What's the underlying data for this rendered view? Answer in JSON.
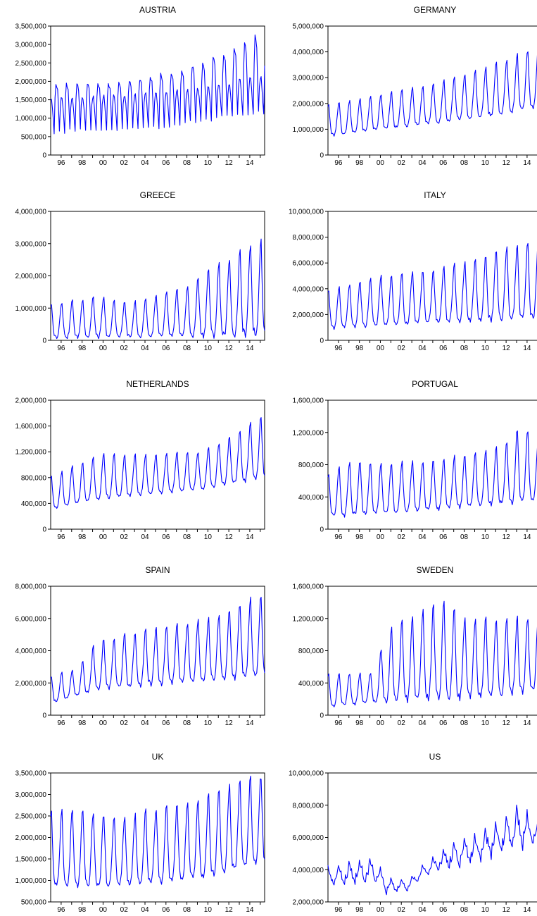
{
  "figure": {
    "x_axis_type": "monthly date axis, 1996 to 2015",
    "x_tick_labels": [
      "96",
      "98",
      "00",
      "02",
      "04",
      "06",
      "08",
      "10",
      "12",
      "14"
    ],
    "line_color": "#0000ff",
    "axis_color": "#000000",
    "grid": false,
    "legend": "none"
  },
  "chart_data": [
    {
      "type": "line",
      "title": "AUSTRIA",
      "xlabel": "",
      "ylabel": "",
      "xlim": [
        "1995-07",
        "2015-12"
      ],
      "ylim": [
        0,
        3500000
      ],
      "yticks": [
        0,
        500000,
        1000000,
        1500000,
        2000000,
        2500000,
        3000000,
        3500000
      ],
      "ytick_labels": [
        "0",
        "500,000",
        "1,000,000",
        "1,500,000",
        "2,000,000",
        "2,500,000",
        "3,000,000",
        "3,500,000"
      ],
      "x_tick_labels": [
        "96",
        "98",
        "00",
        "02",
        "04",
        "06",
        "08",
        "10",
        "12",
        "14"
      ],
      "pattern": "ski",
      "start_date": "1995-01",
      "base_level": [
        [
          1995,
          1100000
        ],
        [
          2000,
          1150000
        ],
        [
          2005,
          1250000
        ],
        [
          2010,
          1400000
        ],
        [
          2015,
          1600000
        ]
      ],
      "winter_peak": [
        [
          1995,
          1900000
        ],
        [
          2002,
          1950000
        ],
        [
          2008,
          2300000
        ],
        [
          2012,
          2750000
        ],
        [
          2015,
          3200000
        ]
      ],
      "summer_peak": [
        [
          1995,
          1500000
        ],
        [
          2005,
          1650000
        ],
        [
          2010,
          1800000
        ],
        [
          2015,
          2100000
        ]
      ],
      "trough": [
        [
          1995,
          500000
        ],
        [
          2005,
          600000
        ],
        [
          2010,
          800000
        ],
        [
          2015,
          950000
        ]
      ]
    },
    {
      "type": "line",
      "title": "GERMANY",
      "xlabel": "",
      "ylabel": "",
      "xlim": [
        "1995-07",
        "2015-12"
      ],
      "ylim": [
        0,
        5000000
      ],
      "yticks": [
        0,
        1000000,
        2000000,
        3000000,
        4000000,
        5000000
      ],
      "ytick_labels": [
        "0",
        "1,000,000",
        "2,000,000",
        "3,000,000",
        "4,000,000",
        "5,000,000"
      ],
      "x_tick_labels": [
        "96",
        "98",
        "00",
        "02",
        "04",
        "06",
        "08",
        "10",
        "12",
        "14"
      ],
      "pattern": "summer",
      "start_date": "1995-01",
      "baseline": [
        [
          1995,
          700000
        ],
        [
          2000,
          950000
        ],
        [
          2005,
          1200000
        ],
        [
          2010,
          1450000
        ],
        [
          2015,
          1800000
        ]
      ],
      "peak": [
        [
          1995,
          1900000
        ],
        [
          2000,
          2300000
        ],
        [
          2005,
          2700000
        ],
        [
          2010,
          3300000
        ],
        [
          2014,
          3950000
        ],
        [
          2015,
          4100000
        ]
      ]
    },
    {
      "type": "line",
      "title": "GREECE",
      "xlabel": "",
      "ylabel": "",
      "xlim": [
        "1995-07",
        "2015-12"
      ],
      "ylim": [
        0,
        4000000
      ],
      "yticks": [
        0,
        1000000,
        2000000,
        3000000,
        4000000
      ],
      "ytick_labels": [
        "0",
        "1,000,000",
        "2,000,000",
        "3,000,000",
        "4,000,000"
      ],
      "x_tick_labels": [
        "96",
        "98",
        "00",
        "02",
        "04",
        "06",
        "08",
        "10",
        "12",
        "14"
      ],
      "pattern": "summer",
      "start_date": "1995-01",
      "baseline": [
        [
          1995,
          80000
        ],
        [
          2005,
          100000
        ],
        [
          2015,
          150000
        ]
      ],
      "peak": [
        [
          1995,
          1100000
        ],
        [
          2000,
          1350000
        ],
        [
          2003,
          1150000
        ],
        [
          2007,
          1500000
        ],
        [
          2009,
          1700000
        ],
        [
          2010,
          2100000
        ],
        [
          2012,
          2450000
        ],
        [
          2014,
          2800000
        ],
        [
          2015,
          3100000
        ]
      ]
    },
    {
      "type": "line",
      "title": "ITALY",
      "xlabel": "",
      "ylabel": "",
      "xlim": [
        "1995-07",
        "2015-12"
      ],
      "ylim": [
        0,
        10000000
      ],
      "yticks": [
        0,
        2000000,
        4000000,
        6000000,
        8000000,
        10000000
      ],
      "ytick_labels": [
        "0",
        "2,000,000",
        "4,000,000",
        "6,000,000",
        "8,000,000",
        "10,000,000"
      ],
      "x_tick_labels": [
        "96",
        "98",
        "00",
        "02",
        "04",
        "06",
        "08",
        "10",
        "12",
        "14"
      ],
      "pattern": "summer",
      "start_date": "1995-01",
      "baseline": [
        [
          1995,
          900000
        ],
        [
          2000,
          1100000
        ],
        [
          2005,
          1350000
        ],
        [
          2010,
          1500000
        ],
        [
          2015,
          1700000
        ]
      ],
      "peak": [
        [
          1995,
          3700000
        ],
        [
          2000,
          4900000
        ],
        [
          2005,
          5400000
        ],
        [
          2010,
          6300000
        ],
        [
          2012,
          7200000
        ],
        [
          2015,
          7500000
        ]
      ]
    },
    {
      "type": "line",
      "title": "NETHERLANDS",
      "xlabel": "",
      "ylabel": "",
      "xlim": [
        "1995-07",
        "2015-12"
      ],
      "ylim": [
        0,
        2000000
      ],
      "yticks": [
        0,
        400000,
        800000,
        1200000,
        1600000,
        2000000
      ],
      "ytick_labels": [
        "0",
        "400,000",
        "800,000",
        "1,200,000",
        "1,600,000",
        "2,000,000"
      ],
      "x_tick_labels": [
        "96",
        "98",
        "00",
        "02",
        "04",
        "06",
        "08",
        "10",
        "12",
        "14"
      ],
      "pattern": "summer",
      "start_date": "1995-01",
      "baseline": [
        [
          1995,
          280000
        ],
        [
          2000,
          470000
        ],
        [
          2005,
          550000
        ],
        [
          2010,
          620000
        ],
        [
          2015,
          780000
        ]
      ],
      "peak": [
        [
          1995,
          760000
        ],
        [
          1998,
          1000000
        ],
        [
          2000,
          1150000
        ],
        [
          2005,
          1150000
        ],
        [
          2010,
          1200000
        ],
        [
          2013,
          1450000
        ],
        [
          2015,
          1720000
        ]
      ]
    },
    {
      "type": "line",
      "title": "PORTUGAL",
      "xlabel": "",
      "ylabel": "",
      "xlim": [
        "1995-07",
        "2015-12"
      ],
      "ylim": [
        0,
        1600000
      ],
      "yticks": [
        0,
        400000,
        800000,
        1200000,
        1600000
      ],
      "ytick_labels": [
        "0",
        "400,000",
        "800,000",
        "1,200,000",
        "1,600,000"
      ],
      "x_tick_labels": [
        "96",
        "98",
        "00",
        "02",
        "04",
        "06",
        "08",
        "10",
        "12",
        "14"
      ],
      "pattern": "summer",
      "start_date": "1995-01",
      "baseline": [
        [
          1995,
          150000
        ],
        [
          2005,
          230000
        ],
        [
          2015,
          350000
        ]
      ],
      "peak": [
        [
          1995,
          650000
        ],
        [
          1998,
          850000
        ],
        [
          2000,
          800000
        ],
        [
          2005,
          850000
        ],
        [
          2010,
          950000
        ],
        [
          2013,
          1100000
        ],
        [
          2014,
          1350000
        ],
        [
          2015,
          1080000
        ]
      ]
    },
    {
      "type": "line",
      "title": "SPAIN",
      "xlabel": "",
      "ylabel": "",
      "xlim": [
        "1995-07",
        "2015-12"
      ],
      "ylim": [
        0,
        8000000
      ],
      "yticks": [
        0,
        2000000,
        4000000,
        6000000,
        8000000
      ],
      "ytick_labels": [
        "0",
        "2,000,000",
        "4,000,000",
        "6,000,000",
        "8,000,000"
      ],
      "x_tick_labels": [
        "96",
        "98",
        "00",
        "02",
        "04",
        "06",
        "08",
        "10",
        "12",
        "14"
      ],
      "pattern": "summer",
      "start_date": "1995-01",
      "baseline": [
        [
          1995,
          650000
        ],
        [
          2000,
          1600000
        ],
        [
          2005,
          1900000
        ],
        [
          2010,
          2050000
        ],
        [
          2015,
          2450000
        ]
      ],
      "peak": [
        [
          1995,
          2300000
        ],
        [
          1998,
          2900000
        ],
        [
          2000,
          4600000
        ],
        [
          2005,
          5300000
        ],
        [
          2010,
          5900000
        ],
        [
          2013,
          6600000
        ],
        [
          2015,
          7400000
        ]
      ]
    },
    {
      "type": "line",
      "title": "SWEDEN",
      "xlabel": "",
      "ylabel": "",
      "xlim": [
        "1995-07",
        "2015-12"
      ],
      "ylim": [
        0,
        1600000
      ],
      "yticks": [
        0,
        400000,
        800000,
        1200000,
        1600000
      ],
      "ytick_labels": [
        "0",
        "400,000",
        "800,000",
        "1,200,000",
        "1,600,000"
      ],
      "x_tick_labels": [
        "96",
        "98",
        "00",
        "02",
        "04",
        "06",
        "08",
        "10",
        "12",
        "14"
      ],
      "pattern": "summer",
      "start_date": "1995-01",
      "baseline": [
        [
          1995,
          100000
        ],
        [
          2000,
          160000
        ],
        [
          2005,
          200000
        ],
        [
          2010,
          220000
        ],
        [
          2015,
          300000
        ]
      ],
      "peak": [
        [
          1995,
          500000
        ],
        [
          2000,
          520000
        ],
        [
          2001,
          1050000
        ],
        [
          2005,
          1320000
        ],
        [
          2007,
          1420000
        ],
        [
          2008,
          1200000
        ],
        [
          2015,
          1200000
        ]
      ]
    },
    {
      "type": "line",
      "title": "UK",
      "xlabel": "",
      "ylabel": "",
      "xlim": [
        "1995-07",
        "2015-12"
      ],
      "ylim": [
        500000,
        3500000
      ],
      "yticks": [
        500000,
        1000000,
        1500000,
        2000000,
        2500000,
        3000000,
        3500000
      ],
      "ytick_labels": [
        "500,000",
        "1,000,000",
        "1,500,000",
        "2,000,000",
        "2,500,000",
        "3,000,000",
        "3,500,000"
      ],
      "x_tick_labels": [
        "96",
        "98",
        "00",
        "02",
        "04",
        "06",
        "08",
        "10",
        "12",
        "14"
      ],
      "pattern": "summer",
      "start_date": "1995-01",
      "baseline": [
        [
          1995,
          850000
        ],
        [
          2000,
          850000
        ],
        [
          2003,
          900000
        ],
        [
          2008,
          1000000
        ],
        [
          2010,
          1050000
        ],
        [
          2015,
          1400000
        ]
      ],
      "peak": [
        [
          1995,
          2600000
        ],
        [
          1998,
          2650000
        ],
        [
          2000,
          2550000
        ],
        [
          2003,
          2450000
        ],
        [
          2005,
          2650000
        ],
        [
          2009,
          2850000
        ],
        [
          2012,
          3150000
        ],
        [
          2015,
          3400000
        ]
      ]
    },
    {
      "type": "line",
      "title": "US",
      "xlabel": "",
      "ylabel": "",
      "xlim": [
        "1995-07",
        "2015-12"
      ],
      "ylim": [
        2000000,
        10000000
      ],
      "yticks": [
        2000000,
        4000000,
        6000000,
        8000000,
        10000000
      ],
      "ytick_labels": [
        "2,000,000",
        "4,000,000",
        "6,000,000",
        "8,000,000",
        "10,000,000"
      ],
      "x_tick_labels": [
        "96",
        "98",
        "00",
        "02",
        "04",
        "06",
        "08",
        "10",
        "12",
        "14"
      ],
      "pattern": "us",
      "start_date": "1995-01",
      "baseline": [
        [
          1995,
          2900000
        ],
        [
          2000,
          3200000
        ],
        [
          2001,
          2500000
        ],
        [
          2003,
          2700000
        ],
        [
          2005,
          3700000
        ],
        [
          2010,
          4600000
        ],
        [
          2015,
          5600000
        ]
      ],
      "peak": [
        [
          1995,
          4200000
        ],
        [
          2000,
          4900000
        ],
        [
          2001,
          3600000
        ],
        [
          2003,
          3400000
        ],
        [
          2007,
          5700000
        ],
        [
          2010,
          6300000
        ],
        [
          2014,
          8300000
        ],
        [
          2015,
          7000000
        ]
      ]
    }
  ]
}
